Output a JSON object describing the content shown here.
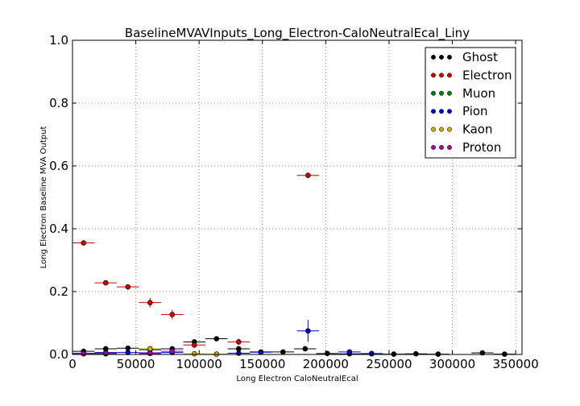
{
  "chart_data": {
    "type": "scatter",
    "title": "BaselineMVAVInputs_Long_Electron-CaloNeutralEcal_Liny",
    "xlabel": "Long Electron CaloNeutralEcal",
    "ylabel": "Long Electron Baseline MVA Output",
    "xlim": [
      0,
      355000
    ],
    "ylim": [
      0,
      1.0
    ],
    "x_ticks": [
      0,
      50000,
      100000,
      150000,
      200000,
      250000,
      300000,
      350000
    ],
    "x_tick_labels": [
      "0",
      "50000",
      "100000",
      "150000",
      "200000",
      "250000",
      "300000",
      "350000"
    ],
    "y_ticks": [
      0.0,
      0.2,
      0.4,
      0.6,
      0.8,
      1.0
    ],
    "y_tick_labels": [
      "0.0",
      "0.2",
      "0.4",
      "0.6",
      "0.8",
      "1.0"
    ],
    "grid": true,
    "legend_position": "top-right",
    "bin_half_width": 8750,
    "series": [
      {
        "name": "Ghost",
        "color": "#000000",
        "points": [
          {
            "x": 8750,
            "y": 0.01,
            "err": 0.003
          },
          {
            "x": 26250,
            "y": 0.018,
            "err": 0.003
          },
          {
            "x": 43750,
            "y": 0.02,
            "err": 0.004
          },
          {
            "x": 61250,
            "y": 0.015,
            "err": 0.004
          },
          {
            "x": 78750,
            "y": 0.018,
            "err": 0.005
          },
          {
            "x": 96250,
            "y": 0.04,
            "err": 0.006
          },
          {
            "x": 113750,
            "y": 0.05,
            "err": 0.007
          },
          {
            "x": 131250,
            "y": 0.018,
            "err": 0.005
          },
          {
            "x": 148750,
            "y": 0.008,
            "err": 0.003
          },
          {
            "x": 166250,
            "y": 0.008,
            "err": 0.003
          },
          {
            "x": 183750,
            "y": 0.018,
            "err": 0.004
          },
          {
            "x": 201250,
            "y": 0.003,
            "err": 0.002
          },
          {
            "x": 218750,
            "y": 0.002,
            "err": 0.002
          },
          {
            "x": 236250,
            "y": 0.002,
            "err": 0.002
          },
          {
            "x": 253750,
            "y": 0.001,
            "err": 0.001
          },
          {
            "x": 271250,
            "y": 0.002,
            "err": 0.002
          },
          {
            "x": 288750,
            "y": 0.001,
            "err": 0.001
          },
          {
            "x": 323750,
            "y": 0.005,
            "err": 0.003
          },
          {
            "x": 341250,
            "y": 0.001,
            "err": 0.001
          }
        ]
      },
      {
        "name": "Electron",
        "color": "#cc0000",
        "points": [
          {
            "x": 8750,
            "y": 0.355,
            "err": 0.005
          },
          {
            "x": 26250,
            "y": 0.228,
            "err": 0.005
          },
          {
            "x": 43750,
            "y": 0.215,
            "err": 0.008
          },
          {
            "x": 61250,
            "y": 0.165,
            "err": 0.015
          },
          {
            "x": 78750,
            "y": 0.127,
            "err": 0.015
          },
          {
            "x": 96250,
            "y": 0.03,
            "err": 0.01
          },
          {
            "x": 131250,
            "y": 0.04,
            "err": 0.01
          },
          {
            "x": 186000,
            "y": 0.57,
            "err": 0.004
          }
        ]
      },
      {
        "name": "Muon",
        "color": "#008000",
        "points": [
          {
            "x": 8750,
            "y": 0.002,
            "err": 0.001
          },
          {
            "x": 26250,
            "y": 0.002,
            "err": 0.001
          }
        ]
      },
      {
        "name": "Pion",
        "color": "#0000cc",
        "points": [
          {
            "x": 8750,
            "y": 0.004,
            "err": 0.001
          },
          {
            "x": 26250,
            "y": 0.006,
            "err": 0.002
          },
          {
            "x": 43750,
            "y": 0.006,
            "err": 0.002
          },
          {
            "x": 61250,
            "y": 0.005,
            "err": 0.002
          },
          {
            "x": 78750,
            "y": 0.006,
            "err": 0.002
          },
          {
            "x": 131250,
            "y": 0.004,
            "err": 0.002
          },
          {
            "x": 148750,
            "y": 0.007,
            "err": 0.003
          },
          {
            "x": 186000,
            "y": 0.075,
            "err": 0.035
          },
          {
            "x": 218750,
            "y": 0.008,
            "err": 0.003
          },
          {
            "x": 236250,
            "y": 0.003,
            "err": 0.002
          }
        ]
      },
      {
        "name": "Kaon",
        "color": "#ccaa00",
        "points": [
          {
            "x": 61250,
            "y": 0.018,
            "err": 0.005
          },
          {
            "x": 96250,
            "y": 0.002,
            "err": 0.002
          },
          {
            "x": 113750,
            "y": 0.001,
            "err": 0.001
          }
        ]
      },
      {
        "name": "Proton",
        "color": "#aa00aa",
        "points": [
          {
            "x": 8750,
            "y": 0.003,
            "err": 0.001
          },
          {
            "x": 26250,
            "y": 0.004,
            "err": 0.002
          },
          {
            "x": 61250,
            "y": 0.003,
            "err": 0.002
          },
          {
            "x": 78750,
            "y": 0.01,
            "err": 0.004
          }
        ]
      }
    ]
  }
}
